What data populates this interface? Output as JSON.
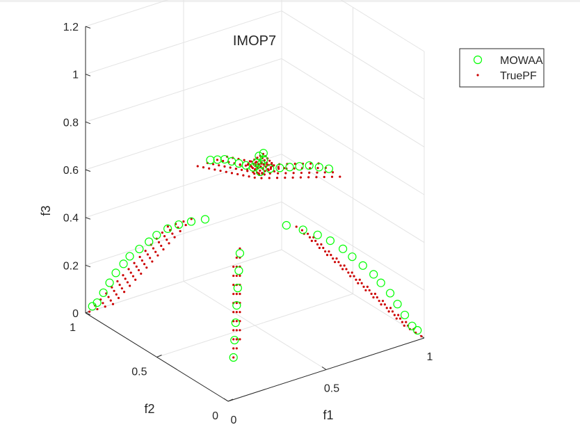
{
  "chart_data": {
    "type": "scatter",
    "projection": "3d",
    "title": "IMOP7",
    "xlabel": "f1",
    "ylabel": "f2",
    "zlabel": "f3",
    "xlim": [
      0,
      1
    ],
    "ylim": [
      0,
      1
    ],
    "zlim": [
      0,
      1.2
    ],
    "xticks": [
      "0",
      "0.5",
      "1"
    ],
    "yticks": [
      "0",
      "0.5",
      "1"
    ],
    "zticks": [
      "0",
      "0.2",
      "0.4",
      "0.6",
      "0.8",
      "1",
      "1.2"
    ],
    "grid": true,
    "legend_position": "top-right",
    "series": [
      {
        "name": "MOWAA",
        "marker": "open-circle",
        "color": "#00ff00",
        "points": [
          [
            0.98,
            0.02,
            0.03
          ],
          [
            0.96,
            0.03,
            0.05
          ],
          [
            0.93,
            0.04,
            0.1
          ],
          [
            0.9,
            0.05,
            0.15
          ],
          [
            0.87,
            0.06,
            0.2
          ],
          [
            0.83,
            0.07,
            0.25
          ],
          [
            0.8,
            0.08,
            0.29
          ],
          [
            0.76,
            0.1,
            0.33
          ],
          [
            0.72,
            0.12,
            0.37
          ],
          [
            0.68,
            0.13,
            0.41
          ],
          [
            0.63,
            0.15,
            0.45
          ],
          [
            0.58,
            0.17,
            0.48
          ],
          [
            0.52,
            0.19,
            0.51
          ],
          [
            0.45,
            0.21,
            0.54
          ],
          [
            0.02,
            0.98,
            0.03
          ],
          [
            0.03,
            0.96,
            0.05
          ],
          [
            0.04,
            0.93,
            0.1
          ],
          [
            0.05,
            0.9,
            0.15
          ],
          [
            0.06,
            0.87,
            0.2
          ],
          [
            0.07,
            0.83,
            0.25
          ],
          [
            0.08,
            0.8,
            0.29
          ],
          [
            0.1,
            0.76,
            0.33
          ],
          [
            0.12,
            0.72,
            0.37
          ],
          [
            0.13,
            0.68,
            0.41
          ],
          [
            0.15,
            0.63,
            0.45
          ],
          [
            0.17,
            0.58,
            0.48
          ],
          [
            0.19,
            0.52,
            0.51
          ],
          [
            0.21,
            0.45,
            0.54
          ],
          [
            0.95,
            0.6,
            0.5
          ],
          [
            0.9,
            0.6,
            0.52
          ],
          [
            0.85,
            0.6,
            0.54
          ],
          [
            0.8,
            0.6,
            0.55
          ],
          [
            0.75,
            0.6,
            0.56
          ],
          [
            0.7,
            0.6,
            0.57
          ],
          [
            0.65,
            0.6,
            0.58
          ],
          [
            0.6,
            0.6,
            0.58
          ],
          [
            0.6,
            0.95,
            0.5
          ],
          [
            0.6,
            0.9,
            0.52
          ],
          [
            0.6,
            0.85,
            0.54
          ],
          [
            0.6,
            0.8,
            0.55
          ],
          [
            0.6,
            0.75,
            0.56
          ],
          [
            0.6,
            0.7,
            0.57
          ],
          [
            0.6,
            0.65,
            0.58
          ],
          [
            0.1,
            0.1,
            0.12
          ],
          [
            0.12,
            0.12,
            0.18
          ],
          [
            0.14,
            0.14,
            0.24
          ],
          [
            0.16,
            0.16,
            0.3
          ],
          [
            0.18,
            0.18,
            0.36
          ],
          [
            0.2,
            0.2,
            0.42
          ],
          [
            0.22,
            0.22,
            0.48
          ],
          [
            0.62,
            0.62,
            0.6
          ],
          [
            0.64,
            0.63,
            0.61
          ],
          [
            0.63,
            0.65,
            0.62
          ],
          [
            0.66,
            0.66,
            0.62
          ],
          [
            0.61,
            0.64,
            0.6
          ]
        ]
      },
      {
        "name": "TruePF",
        "marker": "dot",
        "color": "#cc0000",
        "points": []
      }
    ]
  }
}
